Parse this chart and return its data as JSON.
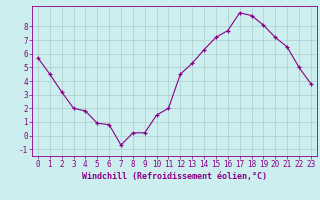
{
  "x": [
    0,
    1,
    2,
    3,
    4,
    5,
    6,
    7,
    8,
    9,
    10,
    11,
    12,
    13,
    14,
    15,
    16,
    17,
    18,
    19,
    20,
    21,
    22,
    23
  ],
  "y": [
    5.7,
    4.5,
    3.2,
    2.0,
    1.8,
    0.9,
    0.8,
    -0.7,
    0.2,
    0.2,
    1.5,
    2.0,
    4.5,
    5.3,
    6.3,
    7.2,
    7.7,
    9.0,
    8.8,
    8.1,
    7.2,
    6.5,
    5.0,
    3.8
  ],
  "line_color": "#880088",
  "marker": "+",
  "bg_color": "#cceeee",
  "grid_color": "#aacccc",
  "xlabel": "Windchill (Refroidissement éolien,°C)",
  "xlim": [
    -0.5,
    23.5
  ],
  "ylim": [
    -1.5,
    9.5
  ],
  "yticks": [
    -1,
    0,
    1,
    2,
    3,
    4,
    5,
    6,
    7,
    8
  ],
  "xticks": [
    0,
    1,
    2,
    3,
    4,
    5,
    6,
    7,
    8,
    9,
    10,
    11,
    12,
    13,
    14,
    15,
    16,
    17,
    18,
    19,
    20,
    21,
    22,
    23
  ],
  "tick_color": "#880088",
  "label_fontsize": 6,
  "tick_fontsize": 5.5
}
